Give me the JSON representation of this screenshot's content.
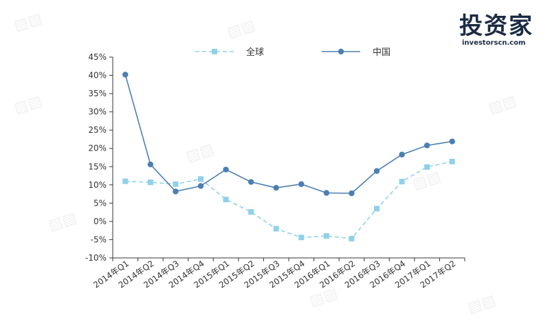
{
  "logo": {
    "text": "投资家",
    "sub": "investorscn.com"
  },
  "colors": {
    "global": "#8fd0ea",
    "china": "#4a7fb4",
    "axis": "#333333"
  },
  "chart_data": {
    "type": "line",
    "categories": [
      "2014年Q1",
      "2014年Q2",
      "2014年Q3",
      "2014年Q4",
      "2015年Q1",
      "2015年Q2",
      "2015年Q3",
      "2015年Q4",
      "2016年Q1",
      "2016年Q2",
      "2016年Q3",
      "2016年Q4",
      "2017年Q1",
      "2017年Q2"
    ],
    "series": [
      {
        "name": "全球",
        "style": "dashed",
        "marker": "square",
        "values": [
          11.0,
          10.7,
          10.2,
          11.6,
          6.0,
          2.6,
          -2.0,
          -4.4,
          -4.0,
          -4.7,
          3.5,
          10.9,
          14.9,
          16.4
        ]
      },
      {
        "name": "中国",
        "style": "solid",
        "marker": "circle",
        "values": [
          40.2,
          15.6,
          8.2,
          9.7,
          14.2,
          10.8,
          9.2,
          10.2,
          7.8,
          7.7,
          13.8,
          18.3,
          20.8,
          21.9
        ]
      }
    ],
    "yticks": [
      "45%",
      "40%",
      "35%",
      "30%",
      "25%",
      "20%",
      "15%",
      "10%",
      "5%",
      "0%",
      "-5%",
      "-10%"
    ],
    "ylim": [
      -10,
      45
    ],
    "ystep": 5,
    "grid": false,
    "legend": "top-center"
  }
}
